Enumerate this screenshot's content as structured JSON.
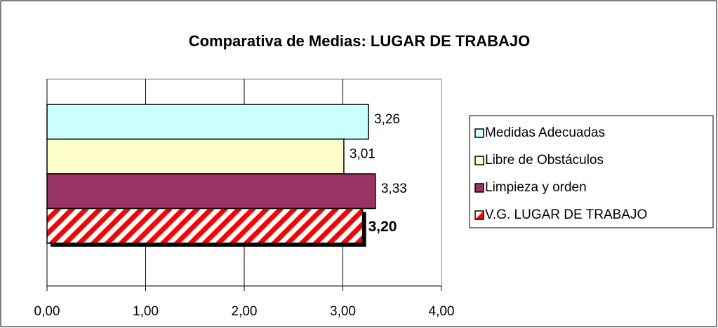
{
  "chart_data": {
    "type": "bar",
    "orientation": "horizontal",
    "title": "Comparativa de Medias: LUGAR DE TRABAJO",
    "series": [
      {
        "name": "Medidas Adecuadas",
        "color": "#ccffff",
        "values": [
          3.26
        ],
        "value_labels": [
          "3,26"
        ]
      },
      {
        "name": "Libre de Obstáculos",
        "color": "#ffffcc",
        "values": [
          3.01
        ],
        "value_labels": [
          "3,01"
        ]
      },
      {
        "name": "Limpieza y orden",
        "color": "#993366",
        "values": [
          3.33
        ],
        "value_labels": [
          "3,33"
        ]
      },
      {
        "name": "V.G. LUGAR DE TRABAJO",
        "color": "#ff0000",
        "values": [
          3.2
        ],
        "value_labels": [
          "3,20"
        ],
        "hatch": true,
        "shadow": true,
        "bold_label": true
      }
    ],
    "xlim": [
      0,
      4
    ],
    "xticks": [
      {
        "value": 0,
        "label": "0,00"
      },
      {
        "value": 1,
        "label": "1,00"
      },
      {
        "value": 2,
        "label": "2,00"
      },
      {
        "value": 3,
        "label": "3,00"
      },
      {
        "value": 4,
        "label": "4,00"
      }
    ],
    "grid": true,
    "legend": "right"
  }
}
